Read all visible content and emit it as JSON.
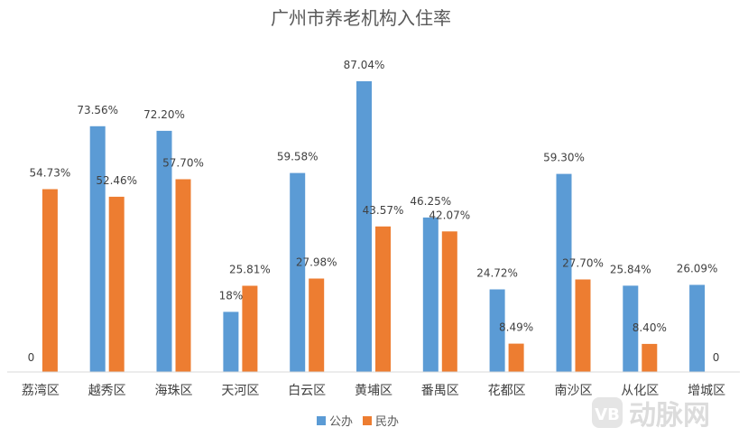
{
  "chart_data": {
    "type": "bar",
    "title": "广州市养老机构入住率",
    "categories": [
      "荔湾区",
      "越秀区",
      "海珠区",
      "天河区",
      "白云区",
      "黄埔区",
      "番禺区",
      "花都区",
      "南沙区",
      "从化区",
      "增城区"
    ],
    "series": [
      {
        "name": "公办",
        "color": "#5b9bd5",
        "values": [
          0,
          73.56,
          72.2,
          18,
          59.58,
          87.04,
          46.25,
          24.72,
          59.3,
          25.84,
          26.09
        ],
        "labels": [
          "0",
          "73.56%",
          "72.20%",
          "18%",
          "59.58%",
          "87.04%",
          "46.25%",
          "24.72%",
          "59.30%",
          "25.84%",
          "26.09%"
        ]
      },
      {
        "name": "民办",
        "color": "#ed7d31",
        "values": [
          54.73,
          52.46,
          57.7,
          25.81,
          27.98,
          43.57,
          42.07,
          8.49,
          27.7,
          8.4,
          0
        ],
        "labels": [
          "54.73%",
          "52.46%",
          "57.70%",
          "25.81%",
          "27.98%",
          "43.57%",
          "42.07%",
          "8.49%",
          "27.70%",
          "8.40%",
          "0"
        ]
      }
    ],
    "ylim": [
      0,
      100
    ],
    "grid": false,
    "legend_position": "bottom",
    "watermark": "动脉网"
  }
}
